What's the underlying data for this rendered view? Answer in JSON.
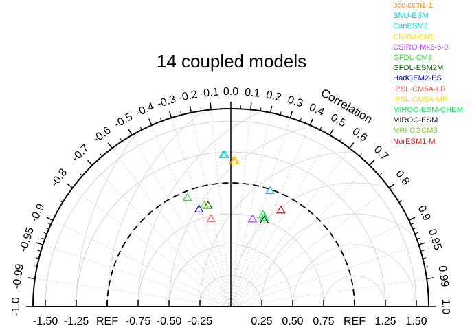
{
  "chart_data": {
    "type": "scatter",
    "subtype": "taylor-diagram",
    "title": "14 coupled models",
    "correlation_label": "Correlation",
    "std_range": [
      -1.6,
      1.6
    ],
    "std_tick_values": [
      -1.5,
      -1.25,
      -1.0,
      -0.75,
      -0.5,
      -0.25,
      0.25,
      0.5,
      0.75,
      1.0,
      1.25,
      1.5
    ],
    "std_tick_labels": [
      "-1.50",
      "-1.25",
      "REF",
      "-0.75",
      "-0.50",
      "-0.25",
      "0.25",
      "0.50",
      "0.75",
      "REF",
      "1.25",
      "1.50"
    ],
    "correlation_ticks": [
      {
        "value": -1.0,
        "label": "-1.0"
      },
      {
        "value": -0.99,
        "label": "-0.99"
      },
      {
        "value": -0.95,
        "label": "-0.95"
      },
      {
        "value": -0.9,
        "label": "-0.9"
      },
      {
        "value": -0.8,
        "label": "-0.8"
      },
      {
        "value": -0.7,
        "label": "-0.7"
      },
      {
        "value": -0.6,
        "label": "-0.6"
      },
      {
        "value": -0.5,
        "label": "-0.5"
      },
      {
        "value": -0.4,
        "label": "-0.4"
      },
      {
        "value": -0.3,
        "label": "-0.3"
      },
      {
        "value": -0.2,
        "label": "-0.2"
      },
      {
        "value": -0.1,
        "label": "-0.1"
      },
      {
        "value": 0.0,
        "label": "0.0"
      },
      {
        "value": 0.1,
        "label": "0.1"
      },
      {
        "value": 0.2,
        "label": "0.2"
      },
      {
        "value": 0.3,
        "label": "0.3"
      },
      {
        "value": 0.4,
        "label": "0.4"
      },
      {
        "value": 0.5,
        "label": "0.5"
      },
      {
        "value": 0.6,
        "label": "0.6"
      },
      {
        "value": 0.7,
        "label": "0.7"
      },
      {
        "value": 0.8,
        "label": "0.8"
      },
      {
        "value": 0.9,
        "label": "0.9"
      },
      {
        "value": 0.95,
        "label": "0.95"
      },
      {
        "value": 0.99,
        "label": "0.99"
      },
      {
        "value": 1.0,
        "label": "1.0"
      }
    ],
    "reference_std": 1.0,
    "legend_position": "top-right",
    "series": [
      {
        "name": "bcc-csm1-1",
        "color": "#ff8000",
        "correlation": 0.02,
        "std": 1.18
      },
      {
        "name": "BNU-ESM",
        "color": "#00c8ff",
        "correlation": -0.04,
        "std": 1.23
      },
      {
        "name": "CanESM2",
        "color": "#00e0c8",
        "correlation": -0.05,
        "std": 1.23
      },
      {
        "name": "CNRM-CM5",
        "color": "#ffdc00",
        "correlation": 0.03,
        "std": 1.18
      },
      {
        "name": "CSIRO-Mk3-6-0",
        "color": "#b432ff",
        "correlation": 0.24,
        "std": 0.73
      },
      {
        "name": "GFDL-CM3",
        "color": "#32dc32",
        "correlation": 0.33,
        "std": 0.79
      },
      {
        "name": "GFDL-ESM2M",
        "color": "#006400",
        "correlation": -0.22,
        "std": 0.84
      },
      {
        "name": "HadGEM2-ES",
        "color": "#0000dc",
        "correlation": -0.31,
        "std": 0.83
      },
      {
        "name": "IPSL-CM5A-LR",
        "color": "#ff5a5a",
        "correlation": 0.46,
        "std": 0.88
      },
      {
        "name": "IPSL-CM5A-MR",
        "color": "#ffdc00",
        "correlation": 0.03,
        "std": 1.18
      },
      {
        "name": "MIROC-ESM-CHEM",
        "color": "#00e650",
        "correlation": 0.35,
        "std": 0.77
      },
      {
        "name": "MIROC-ESM",
        "color": "#141414",
        "correlation": 0.36,
        "std": 0.75
      },
      {
        "name": "MRI-CGCM3",
        "color": "#78c832",
        "correlation": -0.25,
        "std": 0.85
      },
      {
        "name": "NorESM1-M",
        "color": "#e61414",
        "correlation": 0.46,
        "std": 0.88
      }
    ],
    "extra_markers": [
      {
        "color": "#32dc32",
        "correlation": -0.37,
        "std": 0.95
      },
      {
        "color": "#ff5a5a",
        "correlation": -0.22,
        "std": 0.73
      },
      {
        "color": "#00c8ff",
        "correlation": 0.32,
        "std": 0.99
      }
    ]
  }
}
